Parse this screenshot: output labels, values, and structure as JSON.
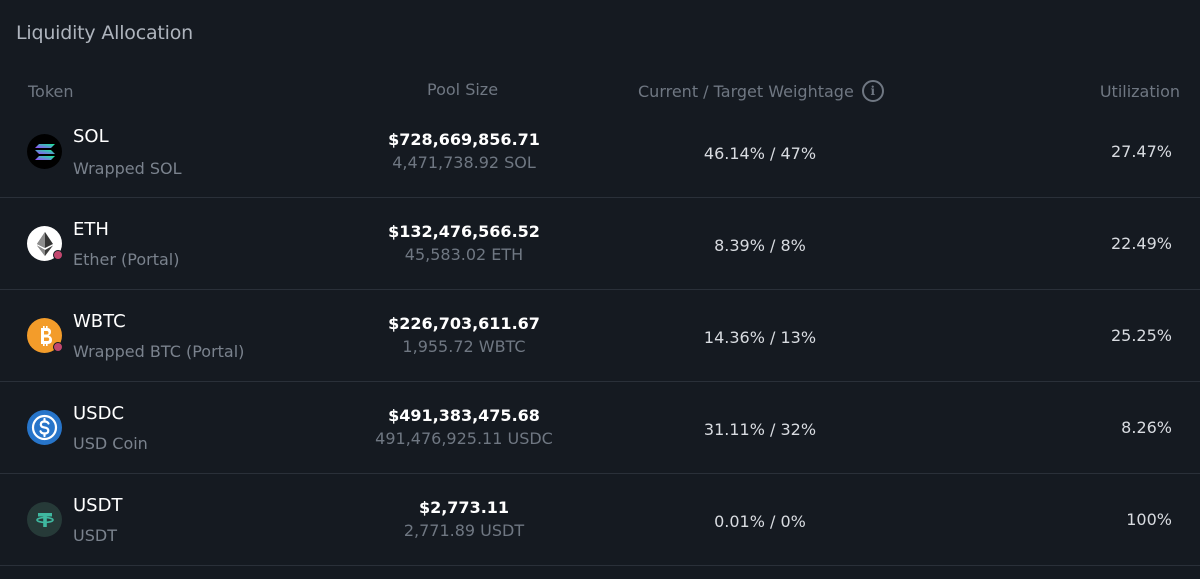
{
  "title": "Liquidity Allocation",
  "headers": {
    "token": "Token",
    "pool_size": "Pool Size",
    "weightage": "Current / Target Weightage",
    "info_glyph": "i",
    "utilization": "Utilization"
  },
  "rows": [
    {
      "symbol": "SOL",
      "name": "Wrapped SOL",
      "pool_usd": "$728,669,856.71",
      "pool_amount": "4,471,738.92 SOL",
      "weightage": "46.14% / 47%",
      "utilization": "27.47%",
      "icon": "sol-icon"
    },
    {
      "symbol": "ETH",
      "name": "Ether (Portal)",
      "pool_usd": "$132,476,566.52",
      "pool_amount": "45,583.02 ETH",
      "weightage": "8.39% / 8%",
      "utilization": "22.49%",
      "icon": "eth-icon"
    },
    {
      "symbol": "WBTC",
      "name": "Wrapped BTC (Portal)",
      "pool_usd": "$226,703,611.67",
      "pool_amount": "1,955.72 WBTC",
      "weightage": "14.36% / 13%",
      "utilization": "25.25%",
      "icon": "btc-icon"
    },
    {
      "symbol": "USDC",
      "name": "USD Coin",
      "pool_usd": "$491,383,475.68",
      "pool_amount": "491,476,925.11 USDC",
      "weightage": "31.11% / 32%",
      "utilization": "8.26%",
      "icon": "usdc-icon"
    },
    {
      "symbol": "USDT",
      "name": "USDT",
      "pool_usd": "$2,773.11",
      "pool_amount": "2,771.89 USDT",
      "weightage": "0.01% / 0%",
      "utilization": "100%",
      "icon": "usdt-icon"
    }
  ],
  "colors": {
    "background": "#151a21",
    "divider": "#2a3039",
    "muted_text": "#6f7782",
    "eth_badge": "#c2476f",
    "btc_orange": "#f39c2a",
    "usdc_blue": "#2775ca",
    "usdt_teal": "#3fb8a0"
  }
}
